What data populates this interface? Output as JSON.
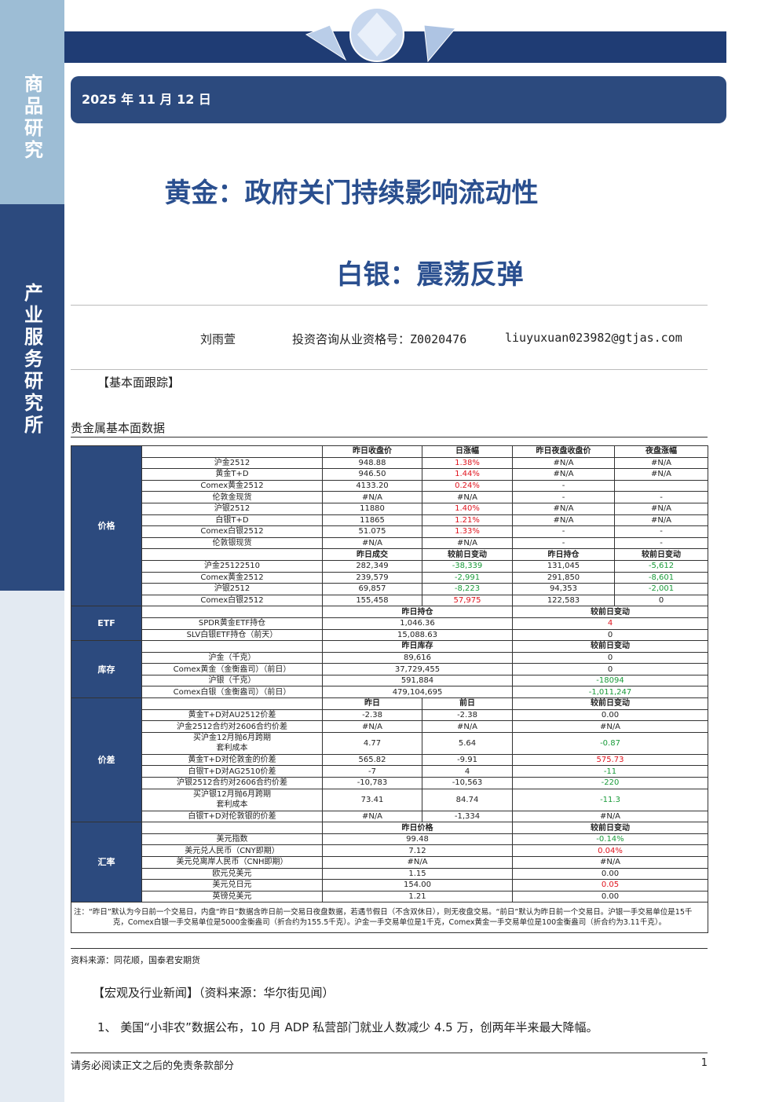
{
  "sidebar": {
    "top": "商品研究",
    "bottom": "产业服务研究所"
  },
  "header": {
    "date": "2025 年 11 月 12 日",
    "title": "黄金：政府关门持续影响流动性",
    "subtitle": "白银：震荡反弹"
  },
  "author": {
    "name": "刘雨萱",
    "license": "投资咨询从业资格号：Z0020476",
    "email": "liuyuxuan023982@gtjas.com"
  },
  "section_heading": "【基本面跟踪】",
  "table": {
    "caption": "贵金属基本面数据",
    "sections": [
      {
        "label": "价格",
        "rows": [
          [
            null,
            "昨日收盘价",
            "日涨幅",
            "昨日夜盘收盘价",
            "夜盘涨幅"
          ],
          [
            "沪金2512",
            "948.88",
            "1.38%",
            "#N/A",
            "#N/A"
          ],
          [
            "黄金T+D",
            "946.50",
            "1.44%",
            "#N/A",
            "#N/A"
          ],
          [
            "Comex黄金2512",
            "4133.20",
            "0.24%",
            "-",
            null
          ],
          [
            "伦敦金现货",
            "#N/A",
            "#N/A",
            "-",
            "-"
          ],
          [
            "沪银2512",
            "11880",
            "1.40%",
            "#N/A",
            "#N/A"
          ],
          [
            "白银T+D",
            "11865",
            "1.21%",
            "#N/A",
            "#N/A"
          ],
          [
            "Comex白银2512",
            "51.075",
            "1.33%",
            "-",
            "-"
          ],
          [
            "伦敦银现货",
            "#N/A",
            "#N/A",
            "-",
            "-"
          ],
          [
            null,
            "昨日成交",
            "较前日变动",
            "昨日持仓",
            "较前日变动"
          ],
          [
            "沪金25122510",
            "282,349",
            "-38,339",
            "131,045",
            "-5,612"
          ],
          [
            "Comex黄金2512",
            "239,579",
            "-2,991",
            "291,850",
            "-8,601"
          ],
          [
            "沪银2512",
            "69,857",
            "-8,223",
            "94,353",
            "-2,001"
          ],
          [
            "Comex白银2512",
            "155,458",
            "57,975",
            "122,583",
            "0"
          ]
        ]
      },
      {
        "label": "ETF",
        "rows": [
          [
            null,
            "昨日持仓",
            "较前日变动"
          ],
          [
            "SPDR黄金ETF持仓",
            "1,046.36",
            "4"
          ],
          [
            "SLV白银ETF持仓（前天）",
            "15,088.63",
            "0"
          ]
        ]
      },
      {
        "label": "库存",
        "rows": [
          [
            null,
            "昨日库存",
            "较前日变动"
          ],
          [
            "沪金（千克）",
            "89,616",
            "0"
          ],
          [
            "Comex黄金（金衡盎司）（前日）",
            "37,729,455",
            "0"
          ],
          [
            "沪银（千克）",
            "591,884",
            "-18094"
          ],
          [
            "Comex白银（金衡盎司）（前日）",
            "479,104,695",
            "-1,011,247"
          ]
        ]
      },
      {
        "label": "价差",
        "rows": [
          [
            null,
            "昨日",
            "前日",
            "较前日变动"
          ],
          [
            "黄金T+D对AU2512价差",
            "-2.38",
            "-2.38",
            "0.00"
          ],
          [
            "沪金2512合约对2606合约价差",
            "#N/A",
            "#N/A",
            "#N/A"
          ],
          [
            "买沪金12月抛6月跨期\n套利成本",
            "4.77",
            "5.64",
            "-0.87"
          ],
          [
            "黄金T+D对伦敦金的价差",
            "565.82",
            "-9.91",
            "575.73"
          ],
          [
            "白银T+D对AG2510价差",
            "-7",
            "4",
            "-11"
          ],
          [
            "沪银2512合约对2606合约价差",
            "-10,783",
            "-10,563",
            "-220"
          ],
          [
            "买沪银12月抛6月跨期\n套利成本",
            "73.41",
            "84.74",
            "-11.3"
          ],
          [
            "白银T+D对伦敦银的价差",
            "#N/A",
            "-1,334",
            "#N/A"
          ]
        ]
      },
      {
        "label": "汇率",
        "rows": [
          [
            null,
            "昨日价格",
            "较前日变动"
          ],
          [
            "美元指数",
            "99.48",
            "-0.14%"
          ],
          [
            "美元兑人民币（CNY即期）",
            "7.12",
            "0.04%"
          ],
          [
            "美元兑离岸人民币（CNH即期）",
            "#N/A",
            "#N/A"
          ],
          [
            "欧元兑美元",
            "1.15",
            "0.00"
          ],
          [
            "美元兑日元",
            "154.00",
            "0.05"
          ],
          [
            "英镑兑美元",
            "1.21",
            "0.00"
          ]
        ]
      }
    ],
    "note": "注：“昨日”默认为今日前一个交易日，内盘“昨日”数据含昨日前一交易日夜盘数据，若遇节假日（不含双休日），则无夜盘交易。“前日”默认为昨日前一个交易日。沪银一手交易单位是15千克，Comex白银一手交易单位是5000金衡盎司（折合约为155.5千克）。沪金一手交易单位是1千克，Comex黄金一手交易单位是100金衡盎司（折合约为3.11千克）。"
  },
  "source": "资料来源：同花顺，国泰君安期货",
  "news": {
    "heading": "【宏观及行业新闻】（资料来源：华尔街见闻）",
    "items": [
      "1、 美国“小非农”数据公布，10 月 ADP 私营部门就业人数减少 4.5 万，创两年半来最大降幅。"
    ]
  },
  "footer": {
    "disclaimer": "请务必阅读正文之后的免责条款部分",
    "page": "1"
  }
}
